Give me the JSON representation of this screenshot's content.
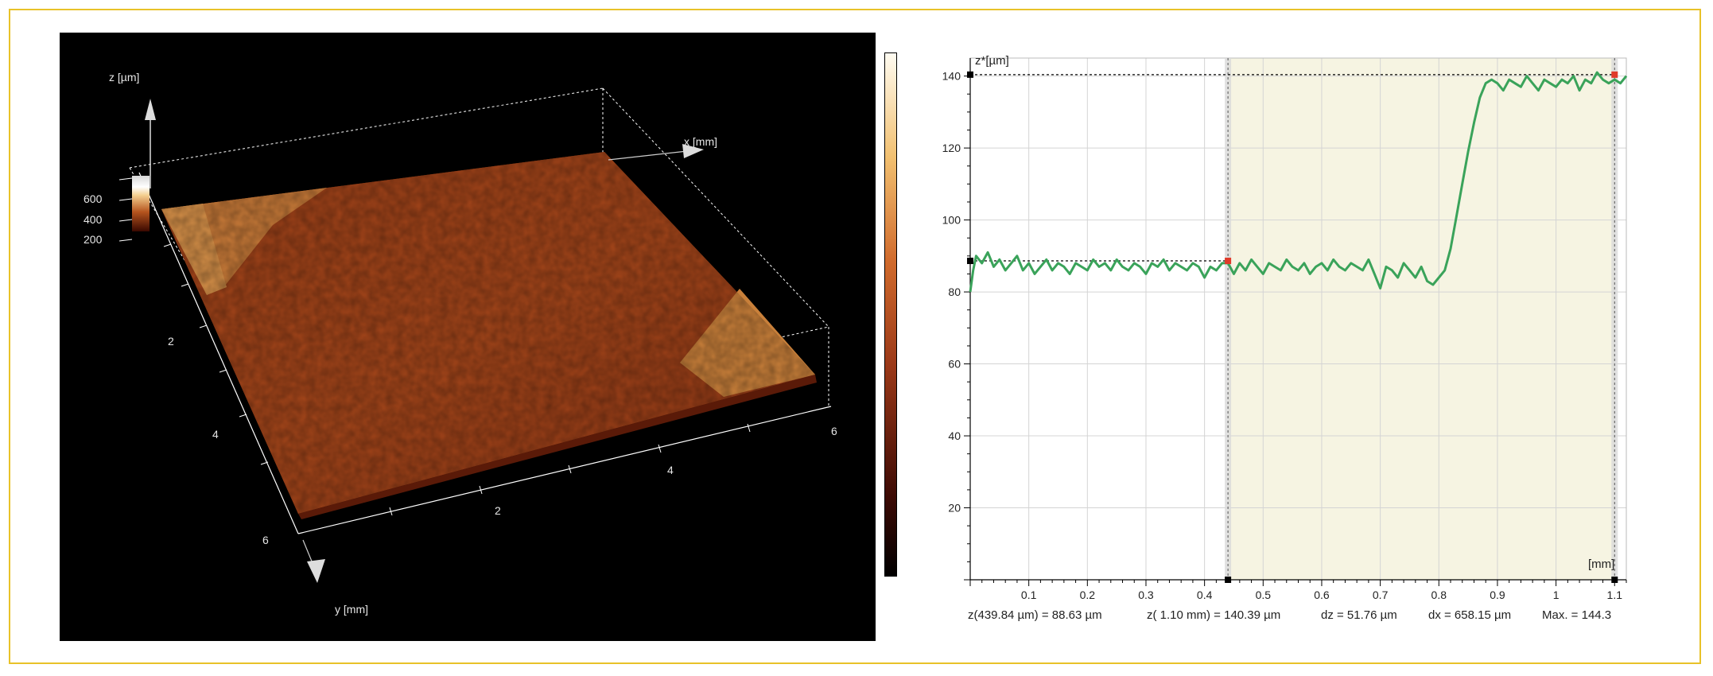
{
  "colors": {
    "frame": "#e8c229",
    "surface_low": "#5a1a08",
    "surface_mid": "#b5541e",
    "surface_high": "#e0a050",
    "profile_line": "#3aa35a",
    "highlight_band": "#f6f4e2"
  },
  "chart_data": [
    {
      "type": "surface-3d",
      "axes": {
        "z": {
          "label": "z [µm]",
          "ticks": [
            "600",
            "400",
            "200"
          ]
        },
        "x": {
          "label": "x [mm]",
          "ticks": [
            "2",
            "4",
            "6"
          ]
        },
        "y": {
          "label": "y [mm]",
          "ticks": [
            "2",
            "4",
            "6"
          ]
        }
      },
      "colorbar": true
    },
    {
      "type": "line",
      "ylabel": "z*[µm]",
      "xlabel": "[mm]",
      "xlim": [
        0,
        1.12
      ],
      "ylim": [
        0,
        145
      ],
      "x_ticks": [
        0.1,
        0.2,
        0.3,
        0.4,
        0.5,
        0.6,
        0.7,
        0.8,
        0.9,
        1,
        1.1
      ],
      "y_ticks": [
        20,
        40,
        60,
        80,
        100,
        120,
        140
      ],
      "grid": true,
      "cursors": {
        "x1": 0.44,
        "z1": 88.63,
        "x2": 1.1,
        "z2": 140.39
      },
      "highlight_range": [
        0.44,
        1.1
      ],
      "series": [
        {
          "x": [
            0,
            0.005,
            0.01,
            0.02,
            0.03,
            0.04,
            0.05,
            0.06,
            0.07,
            0.08,
            0.09,
            0.1,
            0.11,
            0.12,
            0.13,
            0.14,
            0.15,
            0.16,
            0.17,
            0.18,
            0.19,
            0.2,
            0.21,
            0.22,
            0.23,
            0.24,
            0.25,
            0.26,
            0.27,
            0.28,
            0.29,
            0.3,
            0.31,
            0.32,
            0.33,
            0.34,
            0.35,
            0.36,
            0.37,
            0.38,
            0.39,
            0.4,
            0.41,
            0.42,
            0.43,
            0.44,
            0.45,
            0.46,
            0.47,
            0.48,
            0.49,
            0.5,
            0.51,
            0.52,
            0.53,
            0.54,
            0.55,
            0.56,
            0.57,
            0.58,
            0.59,
            0.6,
            0.61,
            0.62,
            0.63,
            0.64,
            0.65,
            0.66,
            0.67,
            0.68,
            0.69,
            0.7,
            0.71,
            0.72,
            0.73,
            0.74,
            0.75,
            0.76,
            0.77,
            0.78,
            0.79,
            0.8,
            0.81,
            0.82,
            0.83,
            0.84,
            0.85,
            0.86,
            0.87,
            0.88,
            0.89,
            0.9,
            0.91,
            0.92,
            0.93,
            0.94,
            0.95,
            0.96,
            0.97,
            0.98,
            0.99,
            1.0,
            1.01,
            1.02,
            1.03,
            1.04,
            1.05,
            1.06,
            1.07,
            1.08,
            1.09,
            1.1,
            1.11,
            1.12
          ],
          "values": [
            80,
            86,
            90,
            88,
            91,
            87,
            89,
            86,
            88,
            90,
            86,
            88,
            85,
            87,
            89,
            86,
            88,
            87,
            85,
            88,
            87,
            86,
            89,
            87,
            88,
            86,
            89,
            87,
            86,
            88,
            87,
            85,
            88,
            87,
            89,
            86,
            88,
            87,
            86,
            88,
            87,
            84,
            87,
            86,
            88,
            88,
            85,
            88,
            86,
            89,
            87,
            85,
            88,
            87,
            86,
            89,
            87,
            86,
            88,
            85,
            87,
            88,
            86,
            89,
            87,
            86,
            88,
            87,
            86,
            89,
            85,
            81,
            87,
            86,
            84,
            88,
            86,
            84,
            87,
            83,
            82,
            84,
            86,
            92,
            101,
            110,
            119,
            127,
            134,
            138,
            139,
            138,
            136,
            139,
            138,
            137,
            140,
            138,
            136,
            139,
            138,
            137,
            139,
            138,
            140,
            136,
            139,
            138,
            141,
            139,
            138,
            139,
            138,
            140
          ]
        }
      ],
      "readout": {
        "z1": "z(439.84 µm) = 88.63 µm",
        "z2": "z( 1.10 mm) = 140.39 µm",
        "dz": "dz = 51.76 µm",
        "dx": "dx = 658.15 µm",
        "max": "Max. = 144.3"
      }
    }
  ]
}
